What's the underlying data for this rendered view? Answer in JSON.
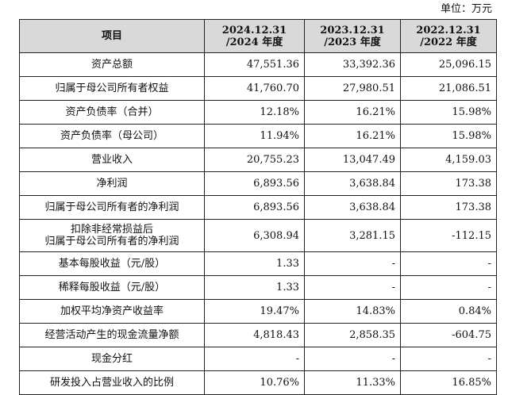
{
  "unit_label": "单位：万元",
  "header": {
    "item": "项目",
    "col1": [
      "2024.12.31",
      "/2024 年度"
    ],
    "col2": [
      "2023.12.31",
      "/2023 年度"
    ],
    "col3": [
      "2022.12.31",
      "/2022 年度"
    ]
  },
  "rows": [
    {
      "label": [
        "资产总额"
      ],
      "v": [
        "47,551.36",
        "33,392.36",
        "25,096.15"
      ]
    },
    {
      "label": [
        "归属于母公司所有者权益"
      ],
      "v": [
        "41,760.70",
        "27,980.51",
        "21,086.51"
      ]
    },
    {
      "label": [
        "资产负债率（合并）"
      ],
      "v": [
        "12.18%",
        "16.21%",
        "15.98%"
      ]
    },
    {
      "label": [
        "资产负债率（母公司）"
      ],
      "v": [
        "11.94%",
        "16.21%",
        "15.98%"
      ]
    },
    {
      "label": [
        "营业收入"
      ],
      "v": [
        "20,755.23",
        "13,047.49",
        "4,159.03"
      ]
    },
    {
      "label": [
        "净利润"
      ],
      "v": [
        "6,893.56",
        "3,638.84",
        "173.38"
      ]
    },
    {
      "label": [
        "归属于母公司所有者的净利润"
      ],
      "v": [
        "6,893.56",
        "3,638.84",
        "173.38"
      ]
    },
    {
      "label": [
        "扣除非经常损益后",
        "归属于母公司所有者的净利润"
      ],
      "v": [
        "6,308.94",
        "3,281.15",
        "-112.15"
      ]
    },
    {
      "label": [
        "基本每股收益（元/股）"
      ],
      "v": [
        "1.33",
        "-",
        "-"
      ]
    },
    {
      "label": [
        "稀释每股收益（元/股）"
      ],
      "v": [
        "1.33",
        "-",
        "-"
      ]
    },
    {
      "label": [
        "加权平均净资产收益率"
      ],
      "v": [
        "19.47%",
        "14.83%",
        "0.84%"
      ]
    },
    {
      "label": [
        "经营活动产生的现金流量净额"
      ],
      "v": [
        "4,818.43",
        "2,858.35",
        "-604.75"
      ]
    },
    {
      "label": [
        "现金分红"
      ],
      "v": [
        "-",
        "-",
        "-"
      ]
    },
    {
      "label": [
        "研发投入占营业收入的比例"
      ],
      "v": [
        "10.76%",
        "11.33%",
        "16.85%"
      ]
    }
  ]
}
